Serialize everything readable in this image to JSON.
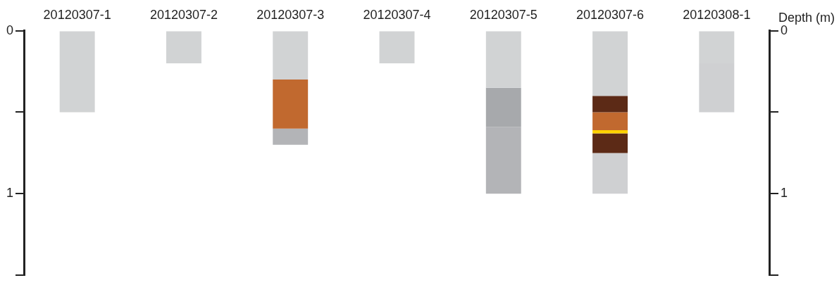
{
  "chart_data": {
    "type": "bar",
    "stacked": true,
    "categories": [
      "20120307-1",
      "20120307-2",
      "20120307-3",
      "20120307-4",
      "20120307-5",
      "20120307-6",
      "20120308-1"
    ],
    "series": [
      {
        "values": [
          0.5,
          0.2,
          0.3,
          0.2,
          0.35,
          0.4,
          0.2
        ],
        "colors": [
          "#d1d3d4",
          "#d1d3d4",
          "#d1d3d4",
          "#d1d3d4",
          "#d1d3d4",
          "#d1d3d4",
          "#d1d3d4"
        ]
      },
      {
        "values": [
          null,
          null,
          0.3,
          null,
          0.24,
          0.1,
          0.3
        ],
        "colors": [
          "#d1d3d4",
          "#d1d3d4",
          "#c1692f",
          "#d1d3d4",
          "#a7a9ac",
          "#5c2a16",
          "#cfd0d2"
        ]
      },
      {
        "values": [
          null,
          null,
          0.1,
          null,
          0.41,
          0.11,
          null
        ],
        "colors": [
          "#d1d3d4",
          "#d1d3d4",
          "#b3b4b7",
          "#d1d3d4",
          "#b3b4b7",
          "#c1692f",
          "#d1d3d4"
        ]
      },
      {
        "values": [
          null,
          null,
          null,
          null,
          null,
          0.02,
          null
        ],
        "colors": [
          "#d1d3d4",
          "#d1d3d4",
          "#d1d3d4",
          "#d1d3d4",
          "#d1d3d4",
          "#ffd200",
          "#d1d3d4"
        ]
      },
      {
        "values": [
          null,
          null,
          null,
          null,
          null,
          0.12,
          null
        ],
        "colors": [
          "#d1d3d4",
          "#d1d3d4",
          "#d1d3d4",
          "#d1d3d4",
          "#d1d3d4",
          "#5c2a16",
          "#d1d3d4"
        ]
      },
      {
        "values": [
          null,
          null,
          null,
          null,
          null,
          0.25,
          null
        ],
        "colors": [
          "#d1d3d4",
          "#d1d3d4",
          "#d1d3d4",
          "#d1d3d4",
          "#d1d3d4",
          "#cfd0d2",
          "#d1d3d4"
        ]
      }
    ],
    "ylim": [
      1.5,
      0
    ],
    "yticks": [
      0,
      {
        "value": 0.5,
        "label": null
      },
      1,
      {
        "value": 1.5,
        "label": null
      }
    ],
    "y2lim": [
      1.5,
      0
    ],
    "y2ticks": [
      0,
      {
        "value": 0.5,
        "label": null
      },
      1,
      {
        "value": 1.5,
        "label": null
      }
    ],
    "y2label": "Depth (m)",
    "grid": false,
    "legend": false
  }
}
